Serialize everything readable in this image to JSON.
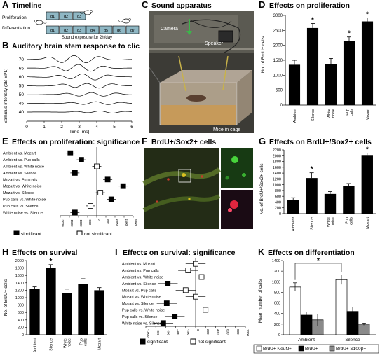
{
  "panelA": {
    "letter": "A",
    "title": "Timeline",
    "row1_label": "Proliferation",
    "row2_label": "Differentiation",
    "prolif_days": [
      "d1",
      "d2",
      "d3"
    ],
    "diff_days": [
      "d1",
      "d2",
      "d3",
      "d4",
      "d5",
      "d6",
      "d7"
    ],
    "caption": "Sound exposure for 2h/day"
  },
  "panelB": {
    "letter": "B",
    "title": "Auditory brain stem response to clicks",
    "ylabel": "Stimulus intensity (dB SPL)",
    "xlabel": "Time [ms]",
    "yticks": [
      "70",
      "65",
      "60",
      "55",
      "50",
      "45",
      "40"
    ],
    "xticks": [
      "0",
      "1",
      "2",
      "3",
      "4",
      "5",
      "6"
    ]
  },
  "panelC": {
    "letter": "C",
    "title": "Sound apparatus",
    "camera": "Camera",
    "speaker": "Speaker",
    "mice": "Mice in cage"
  },
  "panelD": {
    "letter": "D",
    "title": "Effects on proliferation",
    "chart_data": {
      "type": "bar",
      "categories": [
        "Ambient",
        "Silence",
        "White noise",
        "Pup calls",
        "Mozart"
      ],
      "values": [
        1350,
        2580,
        1360,
        2150,
        2800
      ],
      "errors": [
        150,
        150,
        200,
        130,
        120
      ],
      "significant": [
        false,
        true,
        false,
        true,
        true
      ],
      "ylabel": "No. of BrdU+ cells",
      "ylim": [
        0,
        3000
      ],
      "yticks": [
        "0",
        "500",
        "1000",
        "1500",
        "2000",
        "2500",
        "3000"
      ]
    }
  },
  "panelE": {
    "letter": "E",
    "title": "Effects on proliferation: significance",
    "chart_data": {
      "type": "scatter",
      "categories": [
        "Ambient vs. Mozart",
        "Ambient vs. Pup calls",
        "Ambient vs. White noise",
        "Ambient vs. Silence",
        "Mozart vs. Pup calls",
        "Mozart vs. White noise",
        "Mozart vs. Silence",
        "Pup calls vs. White noise",
        "Pup calls vs. Silence",
        "White noise vs. Silence"
      ],
      "values": [
        -1450,
        -850,
        0,
        -1200,
        600,
        1450,
        200,
        800,
        -350,
        -1200
      ],
      "errors": [
        250,
        250,
        250,
        250,
        250,
        250,
        250,
        250,
        250,
        250
      ],
      "significant": [
        true,
        true,
        false,
        true,
        true,
        true,
        false,
        true,
        false,
        true
      ],
      "xlim": [
        -2000,
        2000
      ],
      "xticks": [
        "-2000",
        "-1500",
        "-1000",
        "-500",
        "0",
        "500",
        "1000",
        "1500",
        "2000"
      ],
      "legend": [
        "significant",
        "not significant"
      ]
    }
  },
  "panelF": {
    "letter": "F",
    "title": "BrdU+/Sox2+ cells"
  },
  "panelG": {
    "letter": "G",
    "title": "Effects on BrdU+/Sox2+ cells",
    "chart_data": {
      "type": "bar",
      "categories": [
        "Ambient",
        "Silence",
        "White noise",
        "Pup calls",
        "Mozart"
      ],
      "values": [
        480,
        1230,
        680,
        950,
        2000
      ],
      "errors": [
        70,
        180,
        80,
        90,
        90
      ],
      "significant": [
        false,
        true,
        false,
        false,
        true
      ],
      "ylabel": "No. of BrdU+/Sox2+ cells",
      "ylim": [
        0,
        2200
      ],
      "yticks": [
        "0",
        "200",
        "400",
        "600",
        "800",
        "1000",
        "1200",
        "1400",
        "1600",
        "1800",
        "2000",
        "2200"
      ]
    }
  },
  "panelH": {
    "letter": "H",
    "title": "Effects on survival",
    "chart_data": {
      "type": "bar",
      "categories": [
        "Ambient",
        "Silence",
        "White noise",
        "Pup calls",
        "Mozart"
      ],
      "values": [
        1230,
        1800,
        1120,
        1370,
        1200
      ],
      "errors": [
        60,
        90,
        110,
        140,
        70
      ],
      "significant": [
        false,
        true,
        false,
        false,
        false
      ],
      "ylabel": "No. of BrdU+ cells",
      "ylim": [
        0,
        2000
      ],
      "yticks": [
        "0",
        "200",
        "400",
        "600",
        "800",
        "1000",
        "1200",
        "1400",
        "1600",
        "1800",
        "2000"
      ]
    }
  },
  "panelI": {
    "letter": "I",
    "title": "Effects on survival: significance",
    "chart_data": {
      "type": "scatter",
      "categories": [
        "Ambient vs. Mozart",
        "Ambient vs. Pup calls",
        "Ambient vs. White noise",
        "Ambient vs. Silence",
        "Mozart vs. Pup calls",
        "Mozart vs. White noise",
        "Mozart vs. Silence",
        "Pup calls vs. White noise",
        "Pup calls vs. Silence",
        "White noise vs. Silence"
      ],
      "values": [
        0,
        -150,
        120,
        -560,
        -200,
        0,
        -580,
        200,
        -420,
        -650
      ],
      "errors": [
        200,
        200,
        200,
        200,
        200,
        200,
        200,
        200,
        200,
        200
      ],
      "significant": [
        false,
        false,
        false,
        true,
        false,
        false,
        true,
        false,
        true,
        true
      ],
      "xlim": [
        -1000,
        1000
      ],
      "xticks": [
        "-1000",
        "-800",
        "-600",
        "-400",
        "-200",
        "0",
        "200",
        "400",
        "600",
        "800",
        "1000"
      ],
      "legend": [
        "significant",
        "not significant"
      ]
    }
  },
  "panelK": {
    "letter": "K",
    "title": "Effects on differentiation",
    "chart_data": {
      "type": "bar",
      "categories": [
        "Ambient",
        "Silence"
      ],
      "series": [
        {
          "name": "BrdU+ NeuN+",
          "values": [
            900,
            1040
          ],
          "errors": [
            80,
            90
          ],
          "color": "#ffffff"
        },
        {
          "name": "BrdU+",
          "values": [
            370,
            440
          ],
          "errors": [
            60,
            80
          ],
          "color": "#000000"
        },
        {
          "name": "BrdU+ S100β+",
          "values": [
            280,
            200
          ],
          "errors": [
            110,
            20
          ],
          "color": "#8a8a8a"
        }
      ],
      "ylabel": "Mean number of cells",
      "ylim": [
        0,
        1400
      ],
      "yticks": [
        "0",
        "200",
        "400",
        "600",
        "800",
        "1000",
        "1200",
        "1400"
      ],
      "star": "*"
    }
  }
}
